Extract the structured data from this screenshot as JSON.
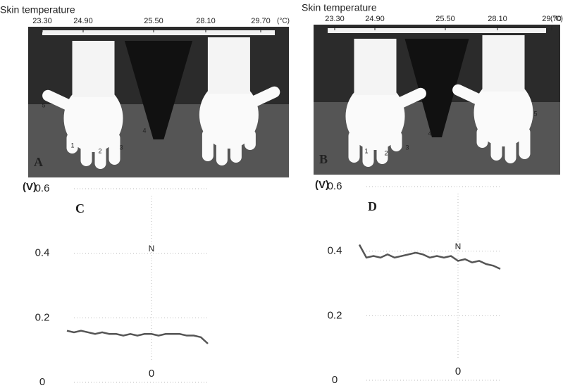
{
  "chart_data": [
    {
      "type": "thermal",
      "title": "Skin temperature",
      "panel": "A",
      "unit": "(°C)",
      "scale_ticks": [
        {
          "value": 23.3,
          "label": "23.30"
        },
        {
          "value": 24.9,
          "label": "24.90"
        },
        {
          "value": 25.5,
          "label": "25.50"
        },
        {
          "value": 28.1,
          "label": "28.10"
        },
        {
          "value": 29.7,
          "label": "29.70"
        }
      ],
      "annotations": [
        "1",
        "2",
        "3",
        "4",
        "5"
      ]
    },
    {
      "type": "thermal",
      "title": "Skin temperature",
      "panel": "B",
      "unit": "(°C)",
      "scale_ticks": [
        {
          "value": 23.3,
          "label": "23.30"
        },
        {
          "value": 24.9,
          "label": "24.90"
        },
        {
          "value": 25.5,
          "label": "25.50"
        },
        {
          "value": 28.1,
          "label": "28.10"
        },
        {
          "value": 29.7,
          "label": "29.70"
        }
      ],
      "annotations": [
        "1",
        "2",
        "3",
        "4",
        "5"
      ]
    },
    {
      "type": "line",
      "panel": "C",
      "ylabel": "(V)",
      "annotation": "N",
      "grid": true,
      "x": [
        -12,
        -11,
        -10,
        -9,
        -8,
        -7,
        -6,
        -5,
        -4,
        -3,
        -2,
        -1,
        0,
        1,
        2,
        3,
        4,
        5,
        6,
        7,
        8
      ],
      "series": [
        {
          "color": "#555555",
          "values": [
            0.16,
            0.155,
            0.16,
            0.155,
            0.15,
            0.155,
            0.15,
            0.15,
            0.145,
            0.15,
            0.145,
            0.15,
            0.15,
            0.145,
            0.15,
            0.15,
            0.15,
            0.145,
            0.145,
            0.14,
            0.12
          ]
        }
      ],
      "xlim": [
        -12,
        8
      ],
      "xticks": [
        0
      ],
      "ylim": [
        0,
        0.6
      ],
      "yticks": [
        0,
        0.2,
        0.4,
        0.6
      ]
    },
    {
      "type": "line",
      "panel": "D",
      "ylabel": "(V)",
      "annotation": "N",
      "grid": true,
      "x": [
        -14,
        -13,
        -12,
        -11,
        -10,
        -9,
        -8,
        -7,
        -6,
        -5,
        -4,
        -3,
        -2,
        -1,
        0,
        1,
        2,
        3,
        4,
        5,
        6
      ],
      "series": [
        {
          "color": "#555555",
          "values": [
            0.42,
            0.38,
            0.385,
            0.38,
            0.39,
            0.38,
            0.385,
            0.39,
            0.395,
            0.39,
            0.38,
            0.385,
            0.38,
            0.385,
            0.37,
            0.375,
            0.365,
            0.37,
            0.36,
            0.355,
            0.345
          ]
        }
      ],
      "xlim": [
        -14,
        6
      ],
      "xticks": [
        0
      ],
      "ylim": [
        0,
        0.6
      ],
      "yticks": [
        0,
        0.2,
        0.4,
        0.6
      ]
    }
  ]
}
